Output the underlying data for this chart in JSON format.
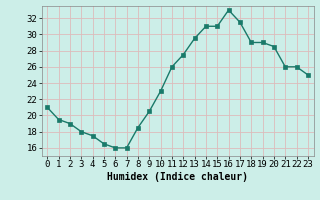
{
  "x": [
    0,
    1,
    2,
    3,
    4,
    5,
    6,
    7,
    8,
    9,
    10,
    11,
    12,
    13,
    14,
    15,
    16,
    17,
    18,
    19,
    20,
    21,
    22,
    23
  ],
  "y": [
    21,
    19.5,
    19,
    18,
    17.5,
    16.5,
    16,
    16,
    18.5,
    20.5,
    23,
    26,
    27.5,
    29.5,
    31,
    31,
    33,
    31.5,
    29,
    29,
    28.5,
    26,
    26,
    25
  ],
  "line_color": "#1a7a6a",
  "marker_color": "#1a7a6a",
  "bg_color": "#cceee8",
  "grid_color": "#ddbbbb",
  "title": "",
  "xlabel": "Humidex (Indice chaleur)",
  "xlim": [
    -0.5,
    23.5
  ],
  "ylim": [
    15,
    33.5
  ],
  "yticks": [
    16,
    18,
    20,
    22,
    24,
    26,
    28,
    30,
    32
  ],
  "xticks": [
    0,
    1,
    2,
    3,
    4,
    5,
    6,
    7,
    8,
    9,
    10,
    11,
    12,
    13,
    14,
    15,
    16,
    17,
    18,
    19,
    20,
    21,
    22,
    23
  ],
  "xlabel_fontsize": 7,
  "tick_fontsize": 6.5,
  "line_width": 1.0,
  "marker_size": 2.5
}
